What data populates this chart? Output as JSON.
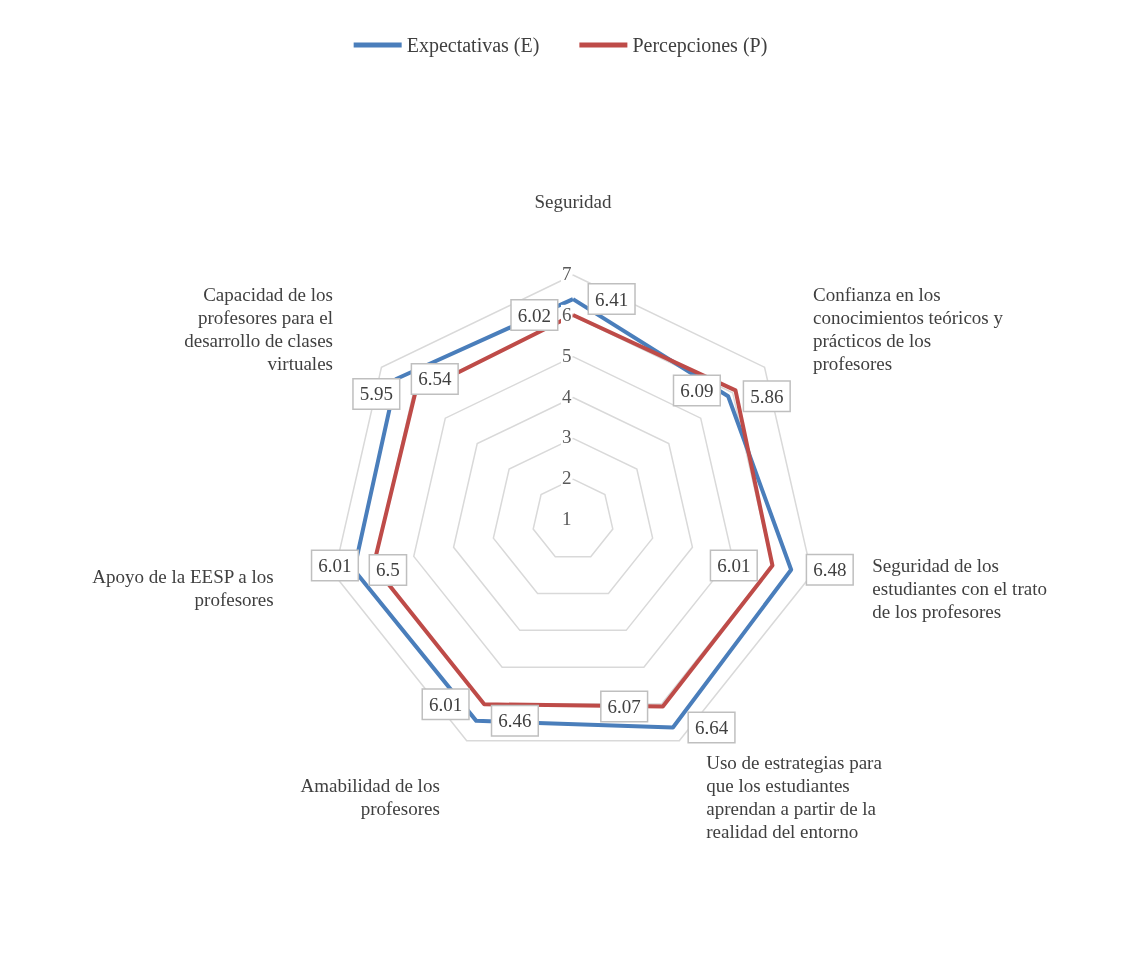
{
  "chart_data": {
    "type": "radar",
    "categories": [
      "Seguridad",
      "Confianza en los conocimientos teóricos y prácticos de los profesores",
      "Seguridad de los estudiantes con el trato de los profesores",
      "Uso de estrategias para que los estudiantes aprendan a partir de la realidad del entorno",
      "Amabilidad de los profesores",
      "Apoyo de la EESP a los profesores",
      "Capacidad de los profesores para el desarrollo de clases virtuales"
    ],
    "series": [
      {
        "name": "Expectativas (E)",
        "color": "#4a7ebb",
        "values": [
          6.41,
          5.86,
          6.48,
          6.64,
          6.46,
          6.5,
          6.54
        ]
      },
      {
        "name": "Percepciones (P)",
        "color": "#be4b48",
        "values": [
          6.02,
          6.09,
          6.01,
          6.07,
          6.01,
          6.01,
          5.95
        ]
      }
    ],
    "ylim": [
      1,
      7
    ],
    "yticks": [
      1,
      2,
      3,
      4,
      5,
      6,
      7
    ],
    "grid": true,
    "legend": "top",
    "data_labels": true,
    "marker": "none"
  }
}
